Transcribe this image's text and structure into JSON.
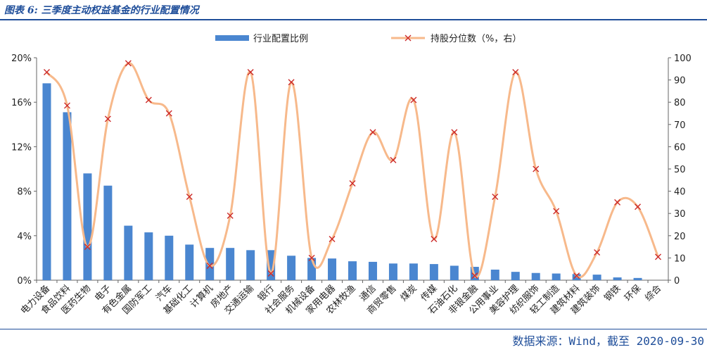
{
  "figure": {
    "title": "图表 6: 三季度主动权益基金的行业配置情况",
    "source": "数据来源：Wind，截至 2020-09-30"
  },
  "colors": {
    "bar": "#4a86d0",
    "line": "#f7b98b",
    "marker": "#cc2a2a",
    "frame": "#1f4e9a"
  },
  "chart_data": {
    "type": "bar",
    "categories": [
      "电力设备",
      "食品饮料",
      "医药生物",
      "电子",
      "有色金属",
      "国防军工",
      "汽车",
      "基础化工",
      "计算机",
      "房地产",
      "交通运输",
      "银行",
      "社会服务",
      "机械设备",
      "家用电器",
      "农林牧渔",
      "通信",
      "商贸零售",
      "煤炭",
      "传媒",
      "石油石化",
      "非银金融",
      "公用事业",
      "美容护理",
      "纺织服饰",
      "轻工制造",
      "建筑材料",
      "建筑装饰",
      "钢铁",
      "环保",
      "综合"
    ],
    "series": [
      {
        "name": "行业配置比例",
        "type": "bar",
        "axis": "left",
        "values": [
          17.7,
          15.1,
          9.6,
          8.5,
          4.9,
          4.3,
          4.0,
          3.2,
          2.9,
          2.9,
          2.7,
          2.7,
          2.2,
          2.0,
          1.95,
          1.7,
          1.65,
          1.5,
          1.5,
          1.45,
          1.3,
          1.2,
          0.95,
          0.75,
          0.65,
          0.6,
          0.55,
          0.5,
          0.25,
          0.2,
          0.0
        ]
      },
      {
        "name": "持股分位数（%，右）",
        "type": "line",
        "axis": "right",
        "values": [
          93.5,
          78.5,
          15,
          72.5,
          97.5,
          81,
          75,
          37.5,
          6.5,
          29,
          93.5,
          3,
          89,
          10,
          18.5,
          43.5,
          66.5,
          54,
          81,
          18.5,
          66.5,
          2,
          37.5,
          93.5,
          50,
          31,
          2,
          12.5,
          35,
          33,
          10.5
        ]
      }
    ],
    "left_axis": {
      "ylim": [
        0,
        20
      ],
      "ticks": [
        "0%",
        "4%",
        "8%",
        "12%",
        "16%",
        "20%"
      ]
    },
    "right_axis": {
      "ylim": [
        0,
        100
      ],
      "ticks": [
        "0",
        "10",
        "20",
        "30",
        "40",
        "50",
        "60",
        "70",
        "80",
        "90",
        "100"
      ]
    },
    "legend": {
      "position": "top",
      "bar_label": "行业配置比例",
      "line_label": "持股分位数（%，右）"
    },
    "grid": false
  }
}
